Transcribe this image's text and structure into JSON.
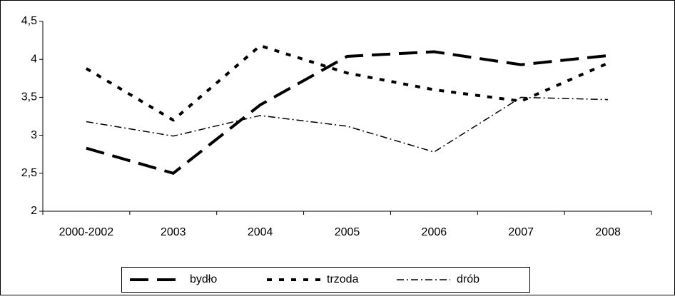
{
  "chart_data": {
    "type": "line",
    "categories": [
      "2000-2002",
      "2003",
      "2004",
      "2005",
      "2006",
      "2007",
      "2008"
    ],
    "series": [
      {
        "name": "bydło",
        "color": "#000000",
        "dash": "long",
        "values": [
          2.83,
          2.5,
          3.4,
          4.04,
          4.1,
          3.93,
          4.05
        ]
      },
      {
        "name": "trzoda",
        "color": "#000000",
        "dash": "short",
        "values": [
          3.88,
          3.2,
          4.18,
          3.82,
          3.6,
          3.45,
          3.95
        ]
      },
      {
        "name": "drób",
        "color": "#000000",
        "dash": "dashdot",
        "values": [
          3.18,
          2.99,
          3.26,
          3.12,
          2.78,
          3.5,
          3.47
        ]
      }
    ],
    "ylim": [
      2,
      4.5
    ],
    "yticks": [
      2,
      {
        "value": 2.5,
        "label": "2,5"
      },
      3,
      {
        "value": 3.5,
        "label": "3,5"
      },
      4,
      {
        "value": 4.5,
        "label": "4,5"
      }
    ],
    "grid": false,
    "legend": "bottom"
  }
}
